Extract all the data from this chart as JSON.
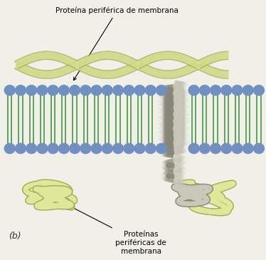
{
  "background_color": "#f0efe8",
  "head_color": "#7090c0",
  "tail_color": "#60a060",
  "prot_color": "#dde89a",
  "prot_outline": "#a8a850",
  "helix_light": "#c8c8b8",
  "helix_dark": "#888878",
  "label_top": "Proteína periférica de membrana",
  "label_bottom": "Proteínas\nperiféricas de\nmembrana",
  "label_b": "(b)",
  "fig_width": 3.74,
  "fig_height": 3.65,
  "dpi": 100
}
